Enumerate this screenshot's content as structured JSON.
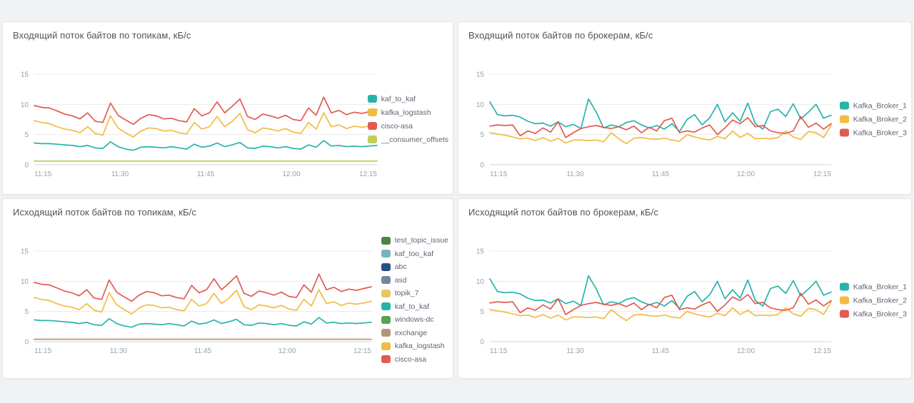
{
  "page": {
    "background": "#f0f2f3",
    "panel_background": "#ffffff",
    "panel_border": "#e3e6e8",
    "grid_color": "#e9e9e9",
    "zero_line_color": "#d6d6d6",
    "axis_text_color": "#9aa0a6",
    "title_color": "#4f5459"
  },
  "chart_data": [
    {
      "type": "line",
      "title": "Входящий поток байтов по топикам, кБ/с",
      "x_ticks": [
        "11:15",
        "11:30",
        "11:45",
        "12:00",
        "12:15"
      ],
      "y_ticks": [
        0,
        5,
        10,
        15
      ],
      "ylim": [
        0,
        15
      ],
      "legend_position": "right-center",
      "series": [
        {
          "name": "kaf_to_kaf",
          "color": "#26b4aa",
          "values": [
            3.6,
            3.5,
            3.5,
            3.4,
            3.3,
            3.2,
            3.0,
            3.2,
            2.8,
            2.7,
            3.8,
            3.0,
            2.6,
            2.4,
            2.9,
            3.0,
            2.9,
            2.8,
            3.0,
            2.8,
            2.6,
            3.4,
            2.9,
            3.1,
            3.6,
            3.0,
            3.3,
            3.7,
            2.8,
            2.7,
            3.1,
            3.0,
            2.8,
            3.0,
            2.7,
            2.6,
            3.3,
            2.9,
            4.0,
            3.1,
            3.2,
            3.0,
            3.1,
            3.0,
            3.1,
            3.2
          ]
        },
        {
          "name": "kafka_logstash",
          "color": "#f2bc43",
          "values": [
            7.3,
            7.0,
            6.8,
            6.3,
            5.9,
            5.7,
            5.3,
            6.3,
            5.2,
            4.9,
            8.1,
            6.1,
            5.3,
            4.6,
            5.6,
            6.1,
            6.0,
            5.6,
            5.7,
            5.3,
            5.1,
            7.0,
            5.9,
            6.3,
            8.0,
            6.3,
            7.2,
            8.5,
            5.8,
            5.3,
            6.1,
            5.9,
            5.6,
            6.0,
            5.4,
            5.2,
            7.0,
            5.9,
            8.6,
            6.3,
            6.6,
            6.0,
            6.4,
            6.2,
            6.4,
            6.7
          ]
        },
        {
          "name": "cisco-asa",
          "color": "#e25b53",
          "values": [
            9.8,
            9.5,
            9.4,
            8.9,
            8.4,
            8.1,
            7.6,
            8.6,
            7.2,
            7.0,
            10.2,
            8.2,
            7.4,
            6.7,
            7.7,
            8.3,
            8.1,
            7.6,
            7.7,
            7.3,
            7.1,
            9.3,
            8.1,
            8.6,
            10.4,
            8.6,
            9.7,
            10.9,
            8.0,
            7.5,
            8.4,
            8.1,
            7.7,
            8.2,
            7.5,
            7.3,
            9.4,
            8.2,
            11.2,
            8.6,
            9.0,
            8.3,
            8.7,
            8.5,
            8.8,
            9.1
          ]
        },
        {
          "name": "__consumer_offsets",
          "color": "#c3cc5a",
          "values": [
            0.6,
            0.6
          ]
        }
      ]
    },
    {
      "type": "line",
      "title": "Входящий поток байтов по брокерам, кБ/с",
      "x_ticks": [
        "11:15",
        "11:30",
        "11:45",
        "12:00",
        "12:15"
      ],
      "y_ticks": [
        0,
        5,
        10,
        15
      ],
      "ylim": [
        0,
        15
      ],
      "legend_position": "right-center",
      "series": [
        {
          "name": "Kafka_Broker_1",
          "color": "#26b4aa",
          "values": [
            10.4,
            8.3,
            8.1,
            8.2,
            7.9,
            7.2,
            6.8,
            6.9,
            6.4,
            7.1,
            6.3,
            6.7,
            6.0,
            10.9,
            8.8,
            6.1,
            6.6,
            6.3,
            7.0,
            7.3,
            6.6,
            6.1,
            6.5,
            5.9,
            6.8,
            5.5,
            7.5,
            8.3,
            6.6,
            7.8,
            10.0,
            7.1,
            8.6,
            7.2,
            10.2,
            6.8,
            5.9,
            8.8,
            9.2,
            8.0,
            10.1,
            7.6,
            8.7,
            10.0,
            7.7,
            8.2
          ]
        },
        {
          "name": "Kafka_Broker_2",
          "color": "#f2bc43",
          "values": [
            5.3,
            5.1,
            4.9,
            4.6,
            4.3,
            4.4,
            4.0,
            4.5,
            3.9,
            4.4,
            3.6,
            4.1,
            4.1,
            4.0,
            4.1,
            3.8,
            5.3,
            4.3,
            3.5,
            4.4,
            4.5,
            4.3,
            4.2,
            4.4,
            4.1,
            3.9,
            5.0,
            4.6,
            4.3,
            4.1,
            4.7,
            4.3,
            5.6,
            4.5,
            5.2,
            4.3,
            4.4,
            4.3,
            4.5,
            5.6,
            4.6,
            4.2,
            5.5,
            5.3,
            4.5,
            6.6
          ]
        },
        {
          "name": "Kafka_Broker_3",
          "color": "#e25b53",
          "values": [
            6.4,
            6.6,
            6.5,
            6.6,
            4.8,
            5.6,
            5.2,
            6.1,
            5.4,
            7.1,
            4.5,
            5.3,
            6.0,
            6.3,
            6.5,
            6.2,
            6.0,
            6.3,
            5.8,
            6.4,
            5.3,
            6.2,
            5.6,
            7.3,
            7.7,
            5.3,
            5.6,
            5.4,
            6.1,
            6.6,
            5.0,
            6.1,
            7.4,
            6.8,
            7.8,
            6.3,
            6.5,
            5.6,
            5.3,
            5.2,
            5.6,
            8.0,
            6.2,
            6.9,
            5.9,
            6.8
          ]
        }
      ]
    },
    {
      "type": "line",
      "title": "Исходящий поток байтов по топикам, кБ/с",
      "x_ticks": [
        "11:15",
        "11:30",
        "11:45",
        "12:00",
        "12:15"
      ],
      "y_ticks": [
        0,
        5,
        10,
        15
      ],
      "ylim": [
        0,
        15
      ],
      "legend_position": "right-top",
      "series": [
        {
          "name": "test_topic_issue",
          "color": "#4e8542",
          "values": []
        },
        {
          "name": "kaf_too_kaf",
          "color": "#7ab5bd",
          "values": []
        },
        {
          "name": "abc",
          "color": "#255084",
          "values": []
        },
        {
          "name": "asd",
          "color": "#74879d",
          "values": []
        },
        {
          "name": "topik_7",
          "color": "#e9c75f",
          "values": []
        },
        {
          "name": "kaf_to_kaf",
          "color": "#26b4aa",
          "values": [
            3.6,
            3.5,
            3.5,
            3.4,
            3.3,
            3.2,
            3.0,
            3.2,
            2.8,
            2.7,
            3.8,
            3.0,
            2.6,
            2.4,
            2.9,
            3.0,
            2.9,
            2.8,
            3.0,
            2.8,
            2.6,
            3.4,
            2.9,
            3.1,
            3.6,
            3.0,
            3.3,
            3.7,
            2.8,
            2.7,
            3.1,
            3.0,
            2.8,
            3.0,
            2.7,
            2.6,
            3.3,
            2.9,
            4.0,
            3.1,
            3.2,
            3.0,
            3.1,
            3.0,
            3.1,
            3.2
          ]
        },
        {
          "name": "windows-dc",
          "color": "#57a34f",
          "values": []
        },
        {
          "name": "exchange",
          "color": "#b2977a",
          "values": [
            0.4,
            0.4
          ]
        },
        {
          "name": "kafka_logstash",
          "color": "#f2bc43",
          "values": [
            7.3,
            7.0,
            6.8,
            6.3,
            5.9,
            5.7,
            5.3,
            6.3,
            5.2,
            4.9,
            8.1,
            6.1,
            5.3,
            4.6,
            5.6,
            6.1,
            6.0,
            5.6,
            5.7,
            5.3,
            5.1,
            7.0,
            5.9,
            6.3,
            8.0,
            6.3,
            7.2,
            8.5,
            5.8,
            5.3,
            6.1,
            5.9,
            5.6,
            6.0,
            5.4,
            5.2,
            7.0,
            5.9,
            8.6,
            6.3,
            6.6,
            6.0,
            6.4,
            6.2,
            6.4,
            6.7
          ]
        },
        {
          "name": "cisco-asa",
          "color": "#e25b53",
          "values": [
            9.8,
            9.5,
            9.4,
            8.9,
            8.4,
            8.1,
            7.6,
            8.6,
            7.2,
            7.0,
            10.2,
            8.2,
            7.4,
            6.7,
            7.7,
            8.3,
            8.1,
            7.6,
            7.7,
            7.3,
            7.1,
            9.3,
            8.1,
            8.6,
            10.4,
            8.6,
            9.7,
            10.9,
            8.0,
            7.5,
            8.4,
            8.1,
            7.7,
            8.2,
            7.5,
            7.3,
            9.4,
            8.2,
            11.2,
            8.6,
            9.0,
            8.3,
            8.7,
            8.5,
            8.8,
            9.1
          ]
        }
      ]
    },
    {
      "type": "line",
      "title": "Исходящий поток байтов по брокерам, кБ/с",
      "x_ticks": [
        "11:15",
        "11:30",
        "11:45",
        "12:00",
        "12:15"
      ],
      "y_ticks": [
        0,
        5,
        10,
        15
      ],
      "ylim": [
        0,
        15
      ],
      "legend_position": "right-center",
      "series": [
        {
          "name": "Kafka_Broker_1",
          "color": "#26b4aa",
          "values": [
            10.4,
            8.3,
            8.1,
            8.2,
            7.9,
            7.2,
            6.8,
            6.9,
            6.4,
            7.1,
            6.3,
            6.7,
            6.0,
            10.9,
            8.8,
            6.1,
            6.6,
            6.3,
            7.0,
            7.3,
            6.6,
            6.1,
            6.5,
            5.9,
            6.8,
            5.5,
            7.5,
            8.3,
            6.6,
            7.8,
            10.0,
            7.1,
            8.6,
            7.2,
            10.2,
            6.8,
            5.9,
            8.8,
            9.2,
            8.0,
            10.1,
            7.6,
            8.7,
            10.0,
            7.7,
            8.2
          ]
        },
        {
          "name": "Kafka_Broker_2",
          "color": "#f2bc43",
          "values": [
            5.3,
            5.1,
            4.9,
            4.6,
            4.3,
            4.4,
            4.0,
            4.5,
            3.9,
            4.4,
            3.6,
            4.1,
            4.1,
            4.0,
            4.1,
            3.8,
            5.3,
            4.3,
            3.5,
            4.4,
            4.5,
            4.3,
            4.2,
            4.4,
            4.1,
            3.9,
            5.0,
            4.6,
            4.3,
            4.1,
            4.7,
            4.3,
            5.6,
            4.5,
            5.2,
            4.3,
            4.4,
            4.3,
            4.5,
            5.6,
            4.6,
            4.2,
            5.5,
            5.3,
            4.5,
            6.6
          ]
        },
        {
          "name": "Kafka_Broker_3",
          "color": "#e25b53",
          "values": [
            6.4,
            6.6,
            6.5,
            6.6,
            4.8,
            5.6,
            5.2,
            6.1,
            5.4,
            7.1,
            4.5,
            5.3,
            6.0,
            6.3,
            6.5,
            6.2,
            6.0,
            6.3,
            5.8,
            6.4,
            5.3,
            6.2,
            5.6,
            7.3,
            7.7,
            5.3,
            5.6,
            5.4,
            6.1,
            6.6,
            5.0,
            6.1,
            7.4,
            6.8,
            7.8,
            6.3,
            6.5,
            5.6,
            5.3,
            5.2,
            5.6,
            8.0,
            6.2,
            6.9,
            5.9,
            6.8
          ]
        }
      ]
    }
  ]
}
